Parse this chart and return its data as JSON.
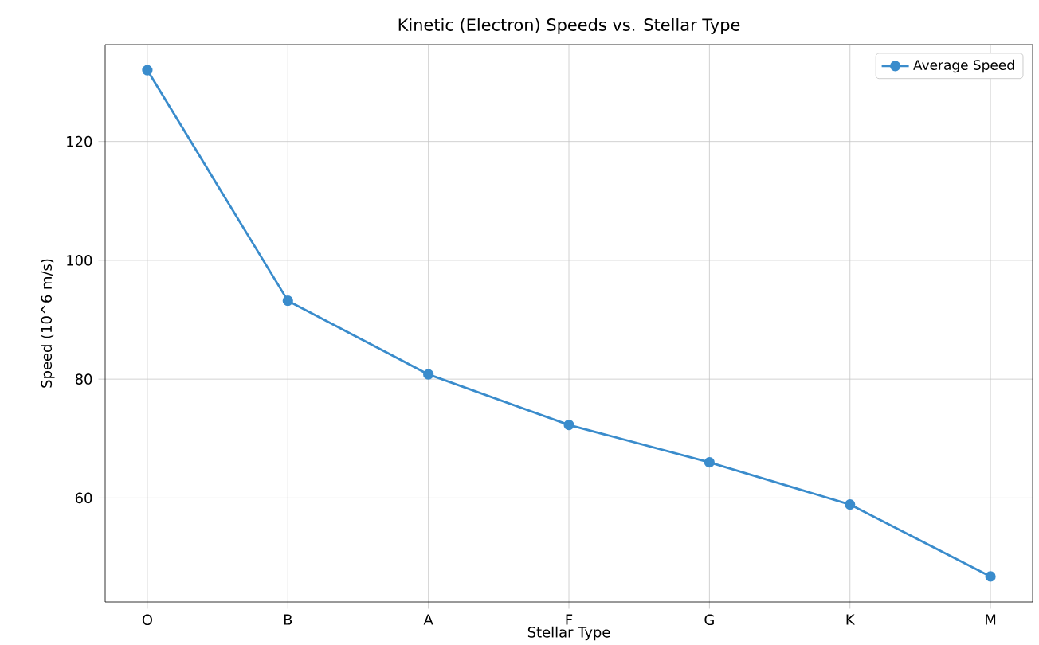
{
  "chart_data": {
    "type": "line",
    "title": "Kinetic (Electron) Speeds vs. Stellar Type",
    "xlabel": "Stellar Type",
    "ylabel": "Speed (10^6 m/s)",
    "categories": [
      "O",
      "B",
      "A",
      "F",
      "G",
      "K",
      "M"
    ],
    "series": [
      {
        "name": "Average Speed",
        "color": "#3a8ccc",
        "values": [
          132,
          93.2,
          80.8,
          72.3,
          66.0,
          58.9,
          46.8
        ]
      }
    ],
    "ylim": [
      42.5,
      136.3
    ],
    "yticks": [
      60,
      80,
      100,
      120
    ],
    "grid": true,
    "legend": "top right",
    "marker": "circle",
    "line_style": "solid"
  }
}
